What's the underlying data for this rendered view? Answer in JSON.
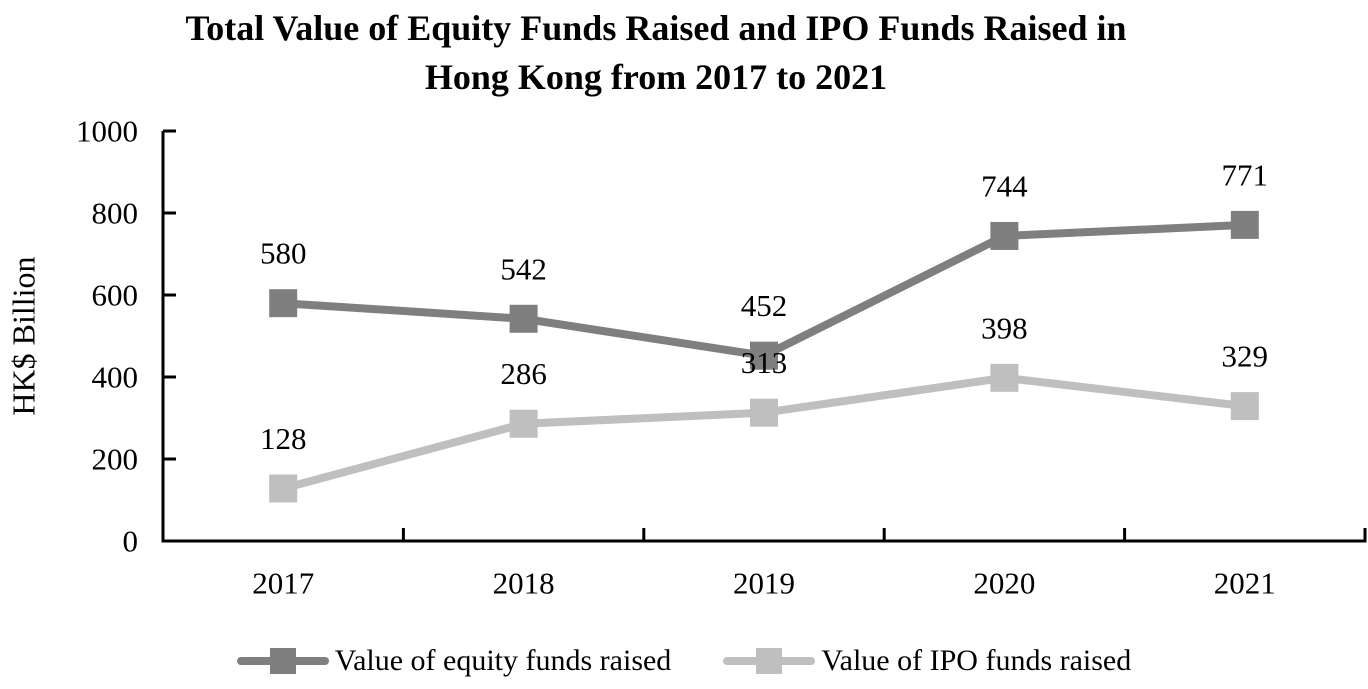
{
  "chart_data": {
    "type": "line",
    "title": "Total Value of Equity Funds Raised and IPO Funds Raised in Hong Kong from 2017 to 2021",
    "title_lines": [
      "Total Value of Equity Funds Raised and IPO Funds Raised in",
      "Hong Kong from 2017 to 2021"
    ],
    "xlabel": "",
    "ylabel": "HK$ Billion",
    "categories": [
      "2017",
      "2018",
      "2019",
      "2020",
      "2021"
    ],
    "series": [
      {
        "name": "Value of equity funds raised",
        "values": [
          580,
          542,
          452,
          744,
          771
        ],
        "color": "#7f7f7f",
        "marker": "square"
      },
      {
        "name": "Value of IPO funds raised",
        "values": [
          128,
          286,
          313,
          398,
          329
        ],
        "color": "#bfbfbf",
        "marker": "square"
      }
    ],
    "ylim": [
      0,
      1000
    ],
    "yticks": [
      0,
      200,
      400,
      600,
      800,
      1000
    ],
    "grid": false,
    "data_labels": true,
    "legend_position": "bottom",
    "axis_color": "#000000",
    "text_color": "#000000",
    "background_color": "#ffffff"
  }
}
